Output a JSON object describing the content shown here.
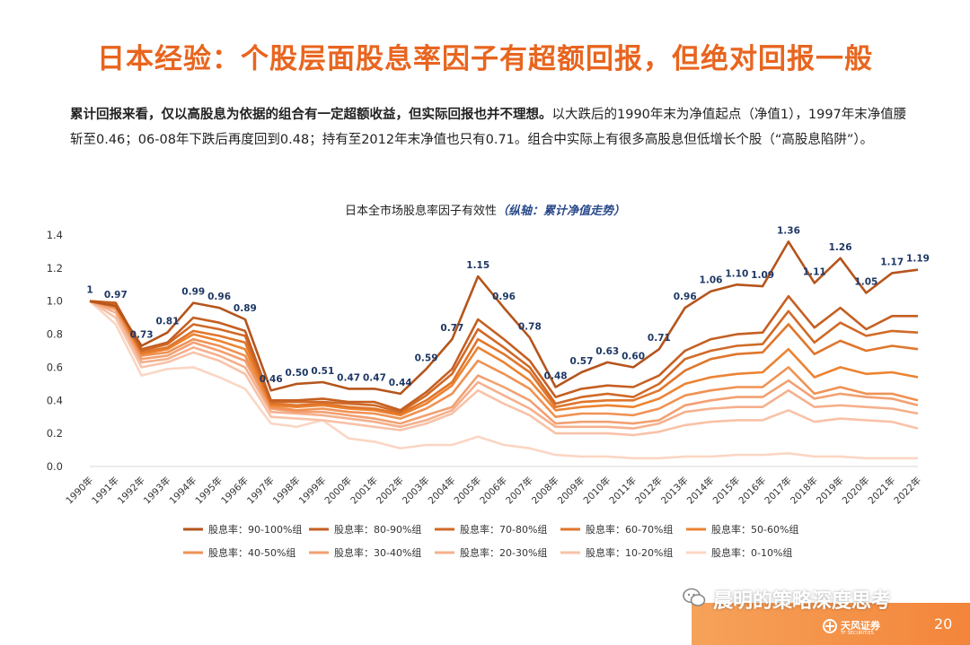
{
  "page_title": "日本经验：个股层面股息率因子有超额回报，但绝对回报一般",
  "intro": {
    "bold": "累计回报来看，仅以高股息为依据的组合有一定超额收益，但实际回报也并不理想。",
    "rest": "以大跌后的1990年末为净值起点（净值1），1997年末净值腰斩至0.46；06-08年下跌后再度回到0.48；持有至2012年末净值也只有0.71。组合中实际上有很多高股息但低增长个股（“高股息陷阱”）。"
  },
  "chart_title": "日本全市场股息率因子有效性",
  "chart_subtitle": "（纵轴：累计净值走势）",
  "footer": {
    "wechat": "晨明的策略深度思考",
    "logo": "天风证券",
    "logo_sub": "TF SECURITIES",
    "page_number": "20"
  },
  "chart_data": {
    "type": "line",
    "x": [
      "1990年",
      "1991年",
      "1992年",
      "1993年",
      "1994年",
      "1995年",
      "1996年",
      "1997年",
      "1998年",
      "1999年",
      "2000年",
      "2001年",
      "2002年",
      "2003年",
      "2004年",
      "2005年",
      "2006年",
      "2007年",
      "2008年",
      "2009年",
      "2010年",
      "2011年",
      "2012年",
      "2013年",
      "2014年",
      "2015年",
      "2016年",
      "2017年",
      "2018年",
      "2019年",
      "2020年",
      "2021年",
      "2022年"
    ],
    "yticks": [
      "0.0",
      "0.2",
      "0.4",
      "0.6",
      "0.8",
      "1.0",
      "1.2",
      "1.4"
    ],
    "ylim": [
      0,
      1.4
    ],
    "grid": false,
    "legend_position": "bottom",
    "series": [
      {
        "name": "股息率：90-100%组",
        "color": "#b5551c",
        "labels": [
          "1",
          "0.97",
          "0.73",
          "0.81",
          "0.99",
          "0.96",
          "0.89",
          "0.46",
          "0.50",
          "0.51",
          "0.47",
          "0.47",
          "0.44",
          "0.59",
          "0.77",
          "1.15",
          "0.96",
          "0.78",
          "0.48",
          "0.57",
          "0.63",
          "0.60",
          "0.71",
          "0.96",
          "1.06",
          "1.10",
          "1.09",
          "1.36",
          "1.11",
          "1.26",
          "1.05",
          "1.17",
          "1.19"
        ],
        "values": [
          1,
          0.97,
          0.73,
          0.81,
          0.99,
          0.96,
          0.89,
          0.46,
          0.5,
          0.51,
          0.47,
          0.47,
          0.44,
          0.59,
          0.77,
          1.15,
          0.96,
          0.78,
          0.48,
          0.57,
          0.63,
          0.6,
          0.71,
          0.96,
          1.06,
          1.1,
          1.09,
          1.36,
          1.11,
          1.26,
          1.05,
          1.17,
          1.19
        ]
      },
      {
        "name": "股息率：80-90%组",
        "color": "#c55f22",
        "values": [
          1,
          0.99,
          0.71,
          0.75,
          0.9,
          0.87,
          0.82,
          0.4,
          0.4,
          0.41,
          0.39,
          0.39,
          0.34,
          0.45,
          0.59,
          0.89,
          0.77,
          0.64,
          0.42,
          0.47,
          0.49,
          0.48,
          0.55,
          0.7,
          0.77,
          0.8,
          0.81,
          1.03,
          0.84,
          0.96,
          0.83,
          0.91,
          0.91
        ]
      },
      {
        "name": "股息率：70-80%组",
        "color": "#d06a27",
        "values": [
          1,
          0.99,
          0.7,
          0.74,
          0.86,
          0.83,
          0.79,
          0.39,
          0.39,
          0.39,
          0.38,
          0.37,
          0.33,
          0.43,
          0.56,
          0.83,
          0.72,
          0.6,
          0.38,
          0.42,
          0.44,
          0.42,
          0.5,
          0.65,
          0.7,
          0.73,
          0.74,
          0.94,
          0.75,
          0.87,
          0.79,
          0.82,
          0.81
        ]
      },
      {
        "name": "股息率：60-70%组",
        "color": "#e0762b",
        "values": [
          1,
          0.98,
          0.69,
          0.72,
          0.82,
          0.79,
          0.75,
          0.38,
          0.37,
          0.38,
          0.36,
          0.35,
          0.32,
          0.4,
          0.51,
          0.77,
          0.68,
          0.57,
          0.36,
          0.39,
          0.4,
          0.4,
          0.46,
          0.58,
          0.65,
          0.68,
          0.69,
          0.86,
          0.68,
          0.76,
          0.7,
          0.73,
          0.71
        ]
      },
      {
        "name": "股息率：50-60%组",
        "color": "#ec8331",
        "values": [
          1,
          0.97,
          0.68,
          0.71,
          0.8,
          0.76,
          0.71,
          0.37,
          0.36,
          0.37,
          0.35,
          0.34,
          0.31,
          0.38,
          0.49,
          0.72,
          0.63,
          0.52,
          0.34,
          0.36,
          0.37,
          0.36,
          0.41,
          0.5,
          0.54,
          0.56,
          0.57,
          0.71,
          0.54,
          0.6,
          0.56,
          0.57,
          0.54
        ]
      },
      {
        "name": "股息率：40-50%组",
        "color": "#ef9254",
        "values": [
          1,
          0.96,
          0.67,
          0.69,
          0.77,
          0.73,
          0.67,
          0.36,
          0.34,
          0.35,
          0.33,
          0.32,
          0.29,
          0.35,
          0.44,
          0.64,
          0.56,
          0.47,
          0.3,
          0.32,
          0.32,
          0.31,
          0.35,
          0.43,
          0.46,
          0.48,
          0.48,
          0.6,
          0.44,
          0.48,
          0.44,
          0.44,
          0.4
        ]
      },
      {
        "name": "股息率：30-40%组",
        "color": "#f2a072",
        "values": [
          1,
          0.95,
          0.65,
          0.67,
          0.75,
          0.7,
          0.64,
          0.35,
          0.33,
          0.33,
          0.31,
          0.29,
          0.26,
          0.31,
          0.36,
          0.55,
          0.48,
          0.4,
          0.26,
          0.27,
          0.27,
          0.26,
          0.28,
          0.37,
          0.4,
          0.42,
          0.42,
          0.52,
          0.41,
          0.44,
          0.42,
          0.41,
          0.37
        ]
      },
      {
        "name": "股息率：20-30%组",
        "color": "#f5b08d",
        "values": [
          1,
          0.93,
          0.63,
          0.65,
          0.72,
          0.67,
          0.6,
          0.33,
          0.32,
          0.31,
          0.29,
          0.27,
          0.24,
          0.28,
          0.34,
          0.51,
          0.43,
          0.35,
          0.24,
          0.24,
          0.24,
          0.23,
          0.26,
          0.33,
          0.35,
          0.36,
          0.36,
          0.46,
          0.36,
          0.37,
          0.36,
          0.35,
          0.32
        ]
      },
      {
        "name": "股息率：10-20%组",
        "color": "#f8c2a8",
        "values": [
          1,
          0.9,
          0.6,
          0.63,
          0.69,
          0.64,
          0.56,
          0.3,
          0.29,
          0.28,
          0.26,
          0.24,
          0.22,
          0.26,
          0.32,
          0.46,
          0.38,
          0.31,
          0.2,
          0.2,
          0.2,
          0.19,
          0.21,
          0.25,
          0.27,
          0.28,
          0.28,
          0.34,
          0.27,
          0.29,
          0.28,
          0.27,
          0.23
        ]
      },
      {
        "name": "股息率：0-10%组",
        "color": "#fad6c4",
        "values": [
          1,
          0.86,
          0.55,
          0.59,
          0.6,
          0.54,
          0.47,
          0.26,
          0.24,
          0.28,
          0.17,
          0.15,
          0.11,
          0.13,
          0.13,
          0.18,
          0.13,
          0.11,
          0.07,
          0.06,
          0.06,
          0.05,
          0.05,
          0.06,
          0.06,
          0.07,
          0.07,
          0.08,
          0.06,
          0.06,
          0.05,
          0.05,
          0.05
        ]
      }
    ]
  }
}
